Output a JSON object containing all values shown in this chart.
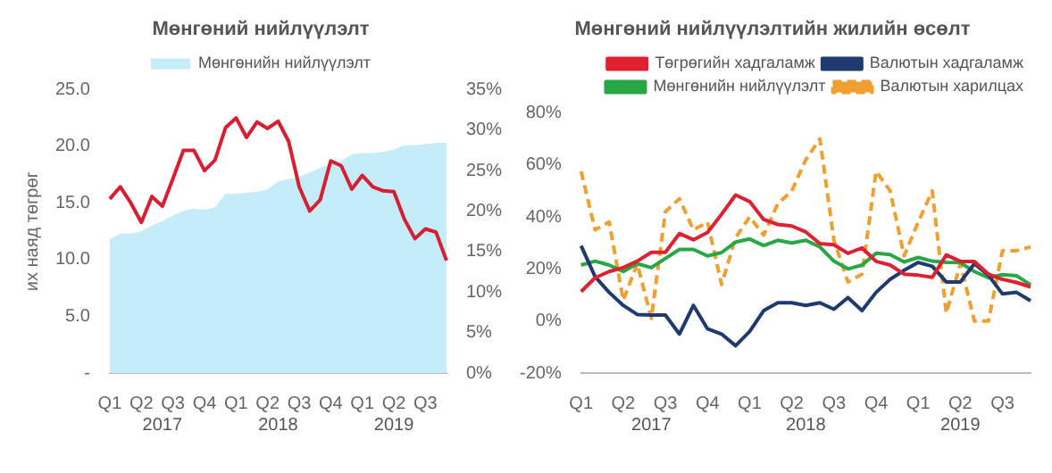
{
  "chart_data": [
    {
      "type": "line",
      "title": "Мөнгөний нийлүүлэлт",
      "ylabel": "их наяд төгрөг",
      "categories": [
        "Q1",
        null,
        null,
        "Q2",
        null,
        null,
        "Q3",
        null,
        null,
        "Q4",
        null,
        null,
        "Q1",
        null,
        null,
        "Q2",
        null,
        null,
        "Q3",
        null,
        null,
        "Q4",
        null,
        null,
        "Q1",
        null,
        null,
        "Q2",
        null,
        null,
        "Q3",
        null,
        null
      ],
      "series": [
        {
          "name": "Мөнгөнийн нийлүүлэлт",
          "type": "area",
          "color": "#c5ecf9",
          "values": [
            11.8,
            12.3,
            12.3,
            12.5,
            13.0,
            13.4,
            13.9,
            14.3,
            14.5,
            14.4,
            14.6,
            15.8,
            15.8,
            15.9,
            16.0,
            16.2,
            16.9,
            17.1,
            17.3,
            17.7,
            18.1,
            18.4,
            18.7,
            19.3,
            19.4,
            19.4,
            19.5,
            19.7,
            20.1,
            20.1,
            20.2,
            20.3,
            20.3
          ]
        },
        {
          "type": "line",
          "axis": "y2",
          "color": "#d81e30",
          "values": [
            21.5,
            23,
            21,
            18.6,
            21.8,
            20.6,
            24,
            27.5,
            27.5,
            25,
            26.3,
            30.3,
            31.5,
            29.1,
            31,
            30.2,
            31.1,
            28.6,
            23,
            20,
            21.4,
            26.2,
            25.6,
            22.7,
            24.4,
            23,
            22.5,
            22.4,
            19,
            16.6,
            17.8,
            17.4,
            13.9
          ]
        }
      ],
      "ylim": [
        0,
        25
      ],
      "yticks": [
        {
          "value": 0,
          "label": "-"
        },
        {
          "value": 5,
          "label": "5.0"
        },
        {
          "value": 10,
          "label": "10.0"
        },
        {
          "value": 15,
          "label": "15.0"
        },
        {
          "value": 20,
          "label": "20.0"
        },
        {
          "value": 25,
          "label": "25.0"
        }
      ],
      "y2lim": [
        0,
        35
      ],
      "y2ticks": [
        {
          "value": 0,
          "label": "0%"
        },
        {
          "value": 5,
          "label": "5%"
        },
        {
          "value": 10,
          "label": "10%"
        },
        {
          "value": 15,
          "label": "15%"
        },
        {
          "value": 20,
          "label": "20%"
        },
        {
          "value": 25,
          "label": "25%"
        },
        {
          "value": 30,
          "label": "30%"
        },
        {
          "value": 35,
          "label": "35%"
        }
      ],
      "annotations": [
        "2017",
        "2018",
        "2019"
      ],
      "legend": "top",
      "marker": "none"
    },
    {
      "type": "line",
      "title": "Мөнгөний нийлүүлэлтийн жилийн өсөлт",
      "categories": [
        "Q1",
        null,
        null,
        "Q2",
        null,
        null,
        "Q3",
        null,
        null,
        "Q4",
        null,
        null,
        "Q1",
        null,
        null,
        "Q2",
        null,
        null,
        "Q3",
        null,
        null,
        "Q4",
        null,
        null,
        "Q1",
        null,
        null,
        "Q2",
        null,
        null,
        "Q3",
        null,
        null
      ],
      "series": [
        {
          "name": "Төгрөгийн хадгаламж",
          "color": "#e0202f",
          "values": [
            11.3,
            16.6,
            19,
            20.5,
            23,
            26.4,
            26.4,
            33.6,
            31.2,
            34,
            41,
            48.4,
            45.9,
            39,
            37.1,
            36.5,
            34.2,
            29.7,
            29.3,
            26,
            28.1,
            22.9,
            21.5,
            18,
            17.6,
            16.8,
            25.4,
            22.9,
            22.9,
            18,
            16,
            14.8,
            13.1
          ]
        },
        {
          "name": "Валютын хадгаламж",
          "color": "#1f3a6e",
          "values": [
            28.9,
            17,
            11,
            6,
            2.5,
            2.3,
            2.3,
            -5,
            6,
            -3,
            -5,
            -9.5,
            -4,
            4,
            7,
            7,
            6,
            7,
            4.5,
            9,
            4,
            11,
            16,
            19.5,
            22.5,
            21,
            15,
            15,
            22,
            17.6,
            10.4,
            11,
            7.8
          ]
        },
        {
          "name": "Мөнгөнийн нийлүүлэлт",
          "color": "#27a844",
          "values": [
            21.5,
            23,
            21.5,
            19,
            22,
            20.5,
            24,
            27.5,
            27.5,
            25,
            26.3,
            30.3,
            31.5,
            29,
            31,
            30,
            31,
            28.5,
            23,
            20,
            21.5,
            26,
            25.5,
            22.7,
            24.4,
            23,
            22.5,
            22.4,
            19,
            16.6,
            17.8,
            17.4,
            13.9
          ]
        },
        {
          "name": "Валютын харилцах",
          "color": "#f0a030",
          "line_style": "dashed",
          "values": [
            57.5,
            35,
            38,
            8,
            22,
            1,
            42,
            47,
            35,
            38,
            14,
            32,
            40,
            33,
            45,
            50,
            62,
            70,
            31,
            15,
            18,
            57.5,
            50,
            25,
            38,
            50,
            3,
            22,
            0,
            0,
            27,
            27,
            28.5
          ]
        }
      ],
      "ylim": [
        -20,
        80
      ],
      "yticks": [
        {
          "value": -20,
          "label": "-20%"
        },
        {
          "value": 0,
          "label": "0%"
        },
        {
          "value": 20,
          "label": "20%"
        },
        {
          "value": 40,
          "label": "40%"
        },
        {
          "value": 60,
          "label": "60%"
        },
        {
          "value": 80,
          "label": "80%"
        }
      ],
      "annotations": [
        "2017",
        "2018",
        "2019"
      ],
      "legend": "top right",
      "marker": "none"
    }
  ]
}
